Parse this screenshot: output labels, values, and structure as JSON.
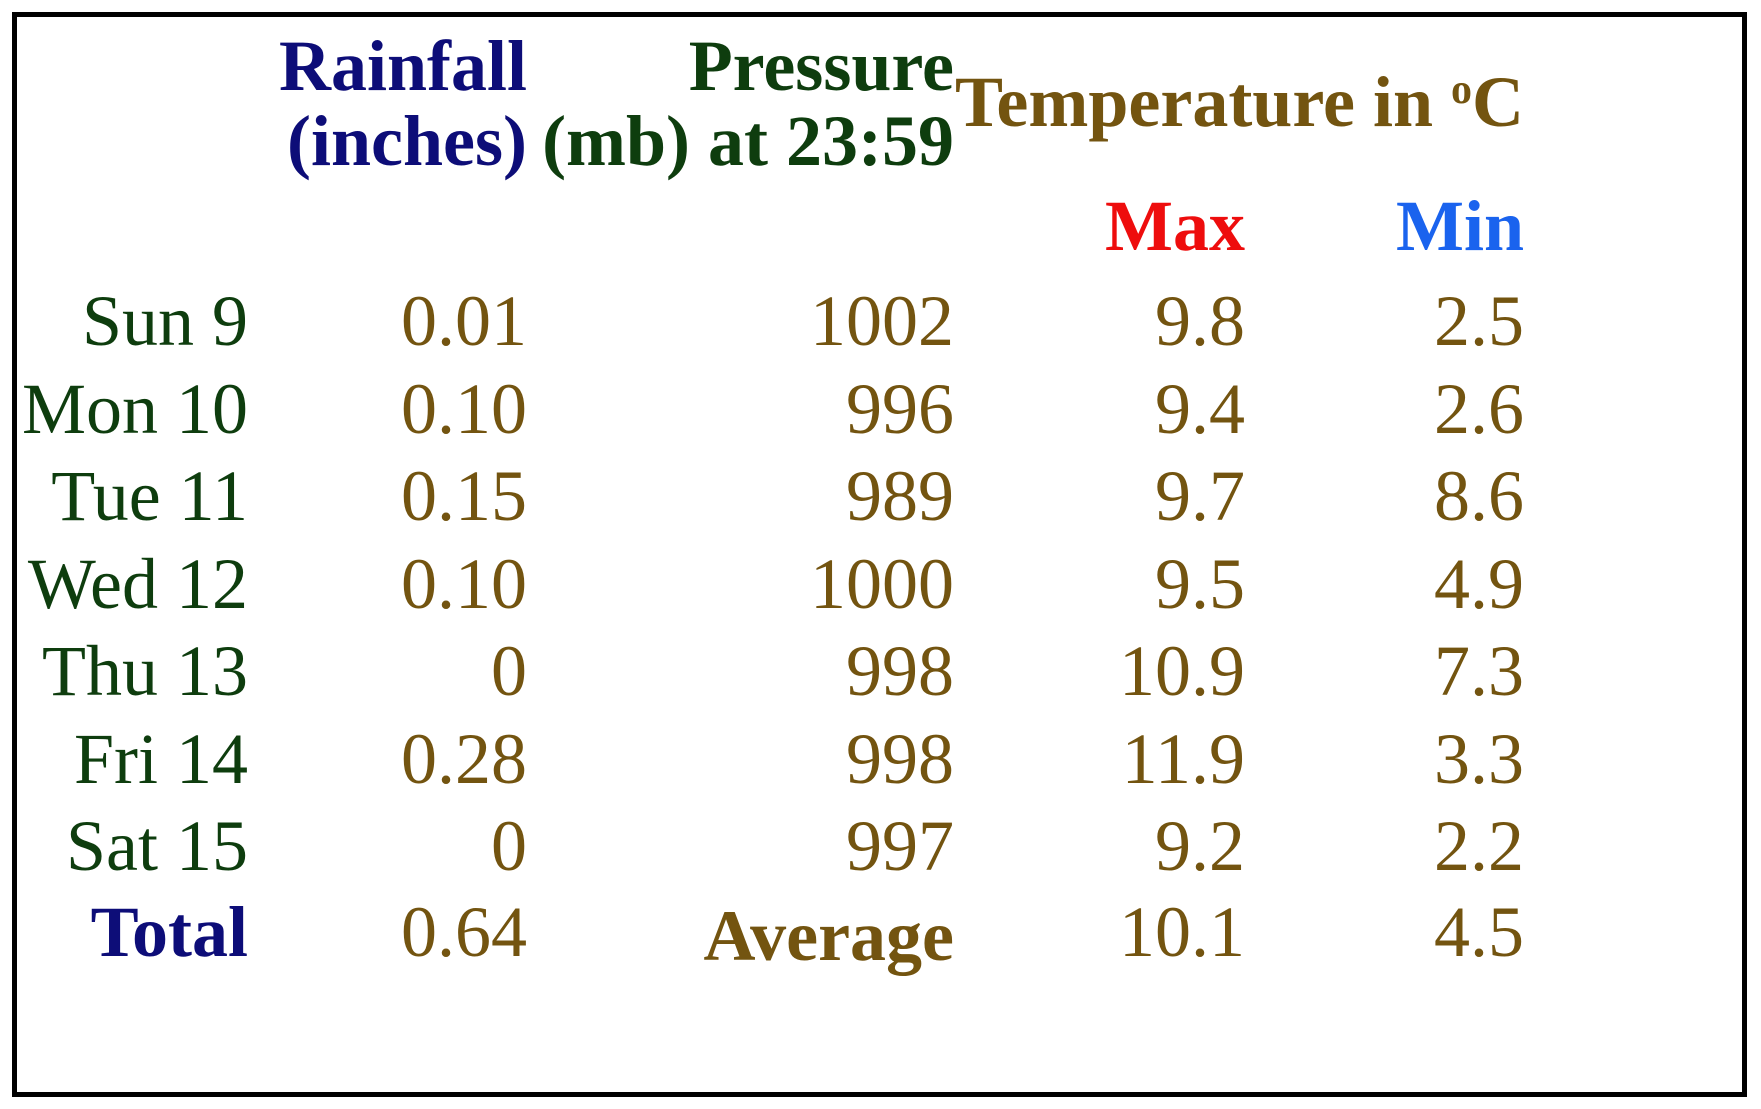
{
  "colors": {
    "rainfall_header": "#0d0d78",
    "pressure_header": "#0e3d0e",
    "temperature_header": "#735410",
    "max_header": "#ee0d0d",
    "min_header": "#1a63ee",
    "day_labels": "#0e3d0e",
    "values": "#735410",
    "total_label": "#0d0d78",
    "border": "#000000"
  },
  "header": {
    "rainfall_line1": "Rainfall",
    "rainfall_line2": "(inches)",
    "pressure_line1": "Pressure",
    "pressure_line2": "(mb) at 23:59",
    "temperature_prefix": "Temperature in ",
    "temperature_degree": "o",
    "temperature_unit": "C",
    "max": "Max",
    "min": "Min"
  },
  "chart_data": {
    "type": "table",
    "columns": [
      "",
      "Rainfall (inches)",
      "Pressure (mb) at 23:59",
      "Max",
      "Min"
    ],
    "rows": [
      {
        "day": "Sun 9",
        "rainfall": "0.01",
        "pressure": "1002",
        "max": "9.8",
        "min": "2.5"
      },
      {
        "day": "Mon 10",
        "rainfall": "0.10",
        "pressure": "996",
        "max": "9.4",
        "min": "2.6"
      },
      {
        "day": "Tue 11",
        "rainfall": "0.15",
        "pressure": "989",
        "max": "9.7",
        "min": "8.6"
      },
      {
        "day": "Wed 12",
        "rainfall": "0.10",
        "pressure": "1000",
        "max": "9.5",
        "min": "4.9"
      },
      {
        "day": "Thu 13",
        "rainfall": "0",
        "pressure": "998",
        "max": "10.9",
        "min": "7.3"
      },
      {
        "day": "Fri 14",
        "rainfall": "0.28",
        "pressure": "998",
        "max": "11.9",
        "min": "3.3"
      },
      {
        "day": "Sat 15",
        "rainfall": "0",
        "pressure": "997",
        "max": "9.2",
        "min": "2.2"
      }
    ],
    "summary": {
      "total_label": "Total",
      "total_rainfall": "0.64",
      "average_label": "Average",
      "average_max": "10.1",
      "average_min": "4.5"
    }
  }
}
